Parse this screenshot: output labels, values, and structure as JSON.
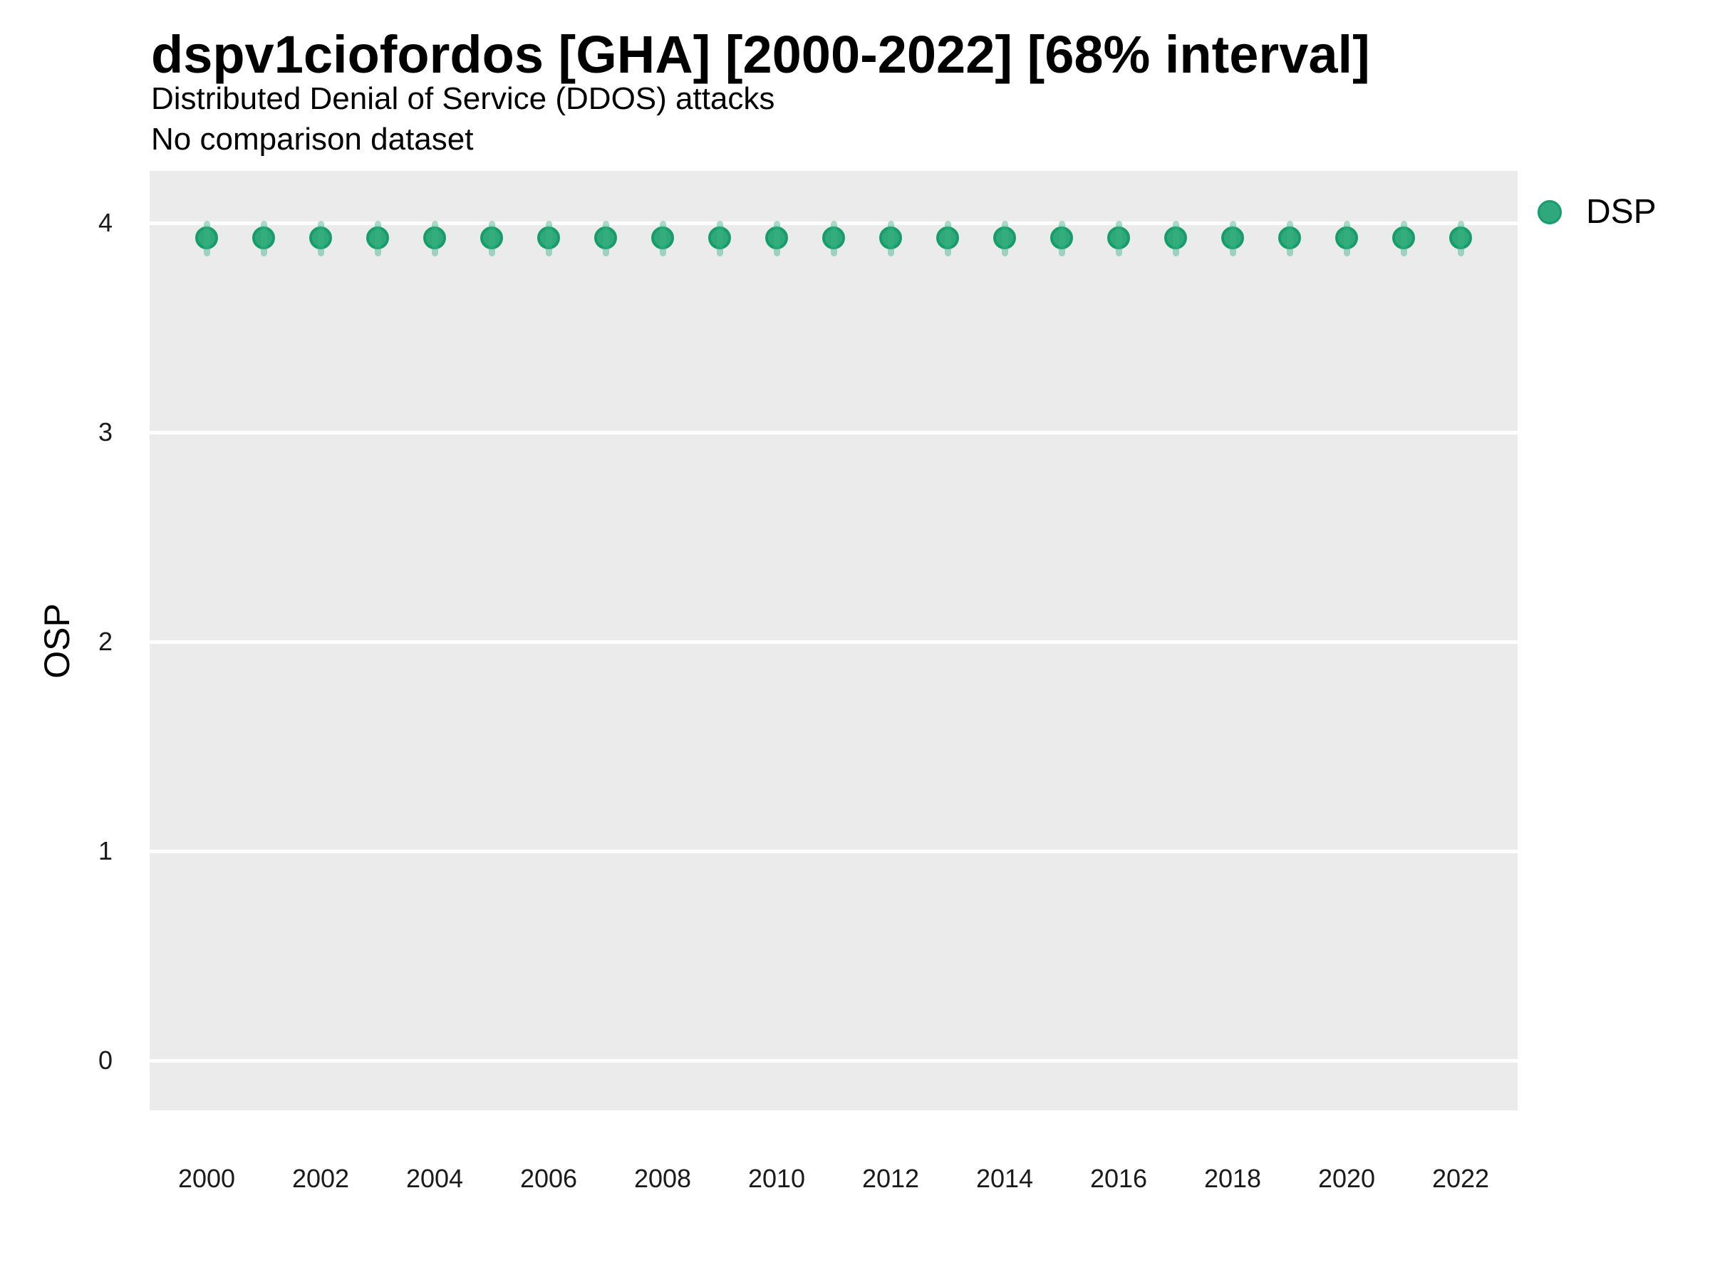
{
  "header": {
    "title": "dspv1ciofordos [GHA] [2000-2022] [68% interval]",
    "subtitle": "Distributed Denial of Service (DDOS) attacks",
    "comparison_note": "No comparison dataset"
  },
  "axes": {
    "y_label": "OSP",
    "y_ticks": [
      4,
      3,
      2,
      1,
      0
    ],
    "x_ticks": [
      2000,
      2002,
      2004,
      2006,
      2008,
      2010,
      2012,
      2014,
      2016,
      2018,
      2020,
      2022
    ]
  },
  "legend": {
    "position": "right",
    "items": [
      {
        "label": "DSP",
        "color": "#2EA87C"
      }
    ]
  },
  "colors": {
    "panel_background": "#EBEBEB",
    "gridline": "#FFFFFF",
    "marker_fill": "#2EA87C",
    "marker_stroke": "#179D69",
    "interval_bar": "rgba(55,182,126,0.45)",
    "text": "#000000"
  },
  "chart_data": {
    "type": "scatter",
    "title": "dspv1ciofordos [GHA] [2000-2022] [68% interval]",
    "subtitle": "Distributed Denial of Service (DDOS) attacks",
    "note": "No comparison dataset",
    "interval": "68%",
    "xlabel": "",
    "ylabel": "OSP",
    "xlim": [
      1999,
      2023
    ],
    "ylim": [
      -0.24,
      4.26
    ],
    "grid": "major-horizontal-only",
    "legend_position": "right",
    "series": [
      {
        "name": "DSP",
        "x": [
          2000,
          2001,
          2002,
          2003,
          2004,
          2005,
          2006,
          2007,
          2008,
          2009,
          2010,
          2011,
          2012,
          2013,
          2014,
          2015,
          2016,
          2017,
          2018,
          2019,
          2020,
          2021,
          2022
        ],
        "y": [
          3.93,
          3.93,
          3.93,
          3.93,
          3.93,
          3.93,
          3.93,
          3.93,
          3.93,
          3.93,
          3.93,
          3.93,
          3.93,
          3.93,
          3.93,
          3.93,
          3.93,
          3.93,
          3.93,
          3.93,
          3.93,
          3.93,
          3.93
        ],
        "y_lo": [
          3.84,
          3.84,
          3.84,
          3.84,
          3.84,
          3.84,
          3.84,
          3.84,
          3.84,
          3.84,
          3.84,
          3.84,
          3.84,
          3.84,
          3.84,
          3.84,
          3.84,
          3.84,
          3.84,
          3.84,
          3.84,
          3.84,
          3.84
        ],
        "y_hi": [
          4.01,
          4.01,
          4.01,
          4.01,
          4.01,
          4.01,
          4.01,
          4.01,
          4.01,
          4.01,
          4.01,
          4.01,
          4.01,
          4.01,
          4.01,
          4.01,
          4.01,
          4.01,
          4.01,
          4.01,
          4.01,
          4.01,
          4.01
        ]
      }
    ]
  }
}
